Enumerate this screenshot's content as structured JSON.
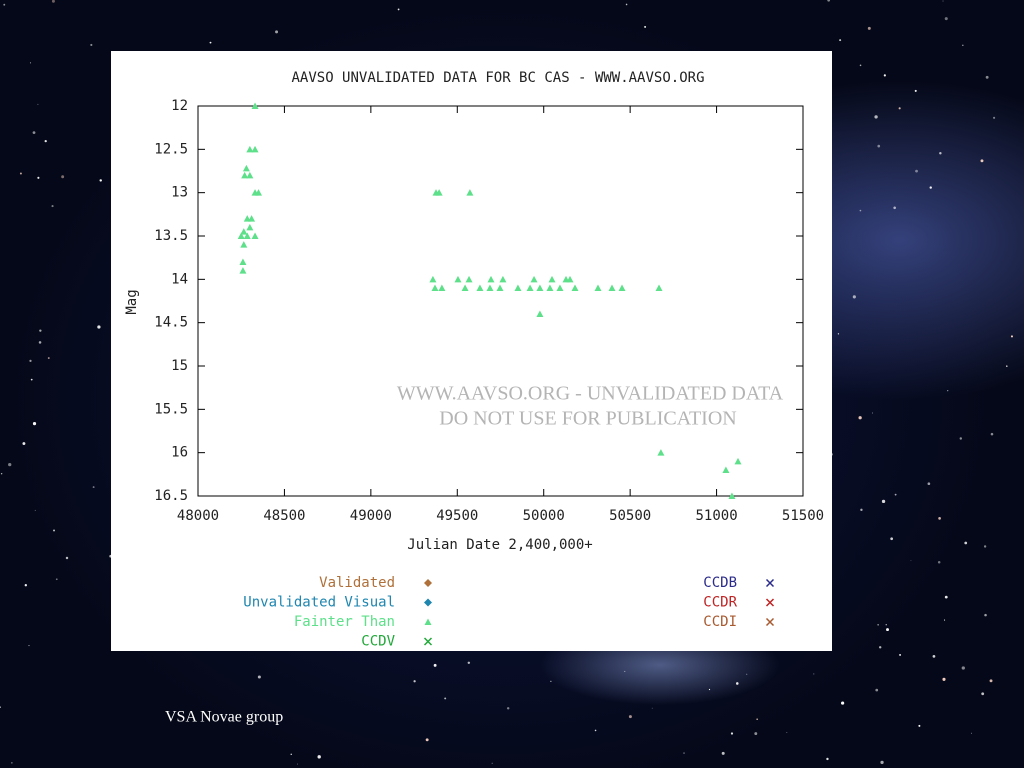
{
  "chart_data": {
    "type": "scatter",
    "title": "AAVSO UNVALIDATED DATA FOR BC CAS - WWW.AAVSO.ORG",
    "x_label": "Julian Date 2,400,000+",
    "y_label": "Mag",
    "xlim": [
      48000,
      51500
    ],
    "xticks": [
      48000,
      48500,
      49000,
      49500,
      50000,
      50500,
      51000,
      51500
    ],
    "ylim": [
      12,
      16.5
    ],
    "yticks": [
      12,
      12.5,
      13,
      13.5,
      14,
      14.5,
      15,
      15.5,
      16,
      16.5
    ],
    "invert_y": true,
    "grid": false,
    "series": [
      {
        "name": "Validated",
        "color": "#b0703a",
        "marker": "diamond",
        "x": [],
        "values": []
      },
      {
        "name": "Unvalidated Visual",
        "color": "#1f86b0",
        "marker": "diamond",
        "x": [],
        "values": []
      },
      {
        "name": "Fainter Than",
        "color": "#5ee08a",
        "marker": "triangle",
        "x": [
          48330,
          48300,
          48330,
          48280,
          48300,
          48270,
          48330,
          48350,
          48285,
          48310,
          48300,
          48265,
          48250,
          48285,
          48330,
          48265,
          48260,
          48260,
          49377,
          49395,
          49573,
          49359,
          49504,
          49568,
          49695,
          49764,
          49944,
          50048,
          50129,
          50152,
          49371,
          49411,
          49545,
          49631,
          49689,
          49747,
          49851,
          49921,
          49978,
          50036,
          50094,
          50181,
          50314,
          50395,
          50453,
          50667,
          49978,
          50678,
          51054,
          51124,
          51089
        ],
        "values": [
          12.0,
          12.5,
          12.5,
          12.72,
          12.8,
          12.8,
          13.0,
          13.0,
          13.3,
          13.3,
          13.4,
          13.45,
          13.5,
          13.5,
          13.5,
          13.6,
          13.8,
          13.9,
          13.0,
          13.0,
          13.0,
          14.0,
          14.0,
          14.0,
          14.0,
          14.0,
          14.0,
          14.0,
          14.0,
          14.0,
          14.1,
          14.1,
          14.1,
          14.1,
          14.1,
          14.1,
          14.1,
          14.1,
          14.1,
          14.1,
          14.1,
          14.1,
          14.1,
          14.1,
          14.1,
          14.1,
          14.4,
          16.0,
          16.2,
          16.1,
          16.5
        ]
      },
      {
        "name": "CCDV",
        "color": "#22a83a",
        "marker": "cross",
        "x": [],
        "values": []
      },
      {
        "name": "CCDB",
        "color": "#2c2c8c",
        "marker": "cross",
        "x": [],
        "values": []
      },
      {
        "name": "CCDR",
        "color": "#c02424",
        "marker": "cross",
        "x": [],
        "values": []
      },
      {
        "name": "CCDI",
        "color": "#a85a30",
        "marker": "cross",
        "x": [],
        "values": []
      }
    ],
    "watermark": [
      "WWW.AAVSO.ORG - UNVALIDATED DATA",
      "DO NOT USE FOR PUBLICATION"
    ]
  },
  "footer": "VSA Novae group"
}
